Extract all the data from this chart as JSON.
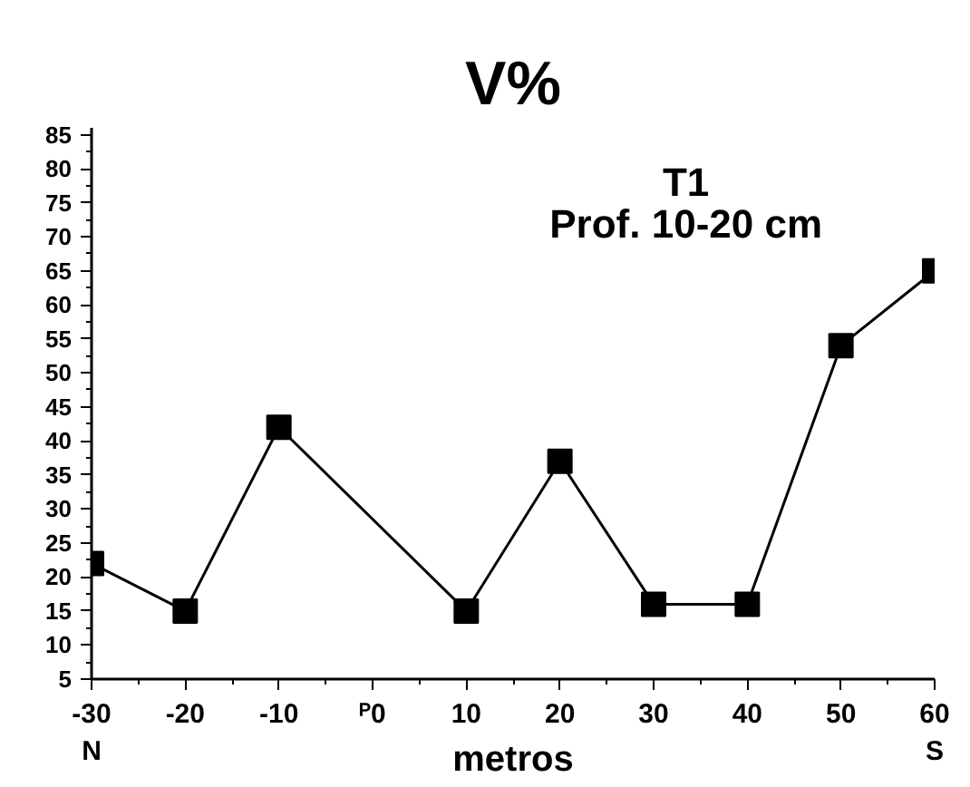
{
  "chart_data": {
    "type": "line",
    "title": "V%",
    "xlabel": "metros",
    "annotations": [
      "T1",
      "Prof. 10-20 cm"
    ],
    "x": [
      -30,
      -20,
      -10,
      10,
      20,
      30,
      40,
      50,
      60
    ],
    "series": [
      {
        "color": "#000000",
        "values": [
          22,
          15,
          42,
          15,
          37,
          16,
          16,
          54,
          65
        ]
      }
    ],
    "marker": "square",
    "line_style": "solid",
    "grid": false,
    "xlim": [
      -30,
      60
    ],
    "xticks": [
      {
        "value": -30,
        "label": "-30\nN"
      },
      -20,
      -10,
      {
        "value": 0,
        "label": "ᴾ0"
      },
      10,
      20,
      30,
      40,
      50,
      {
        "value": 60,
        "label": "60\nS"
      }
    ],
    "ylim": [
      5,
      86
    ],
    "yticks": [
      5,
      10,
      15,
      20,
      25,
      30,
      35,
      40,
      45,
      50,
      55,
      60,
      65,
      70,
      75,
      80,
      85
    ]
  }
}
